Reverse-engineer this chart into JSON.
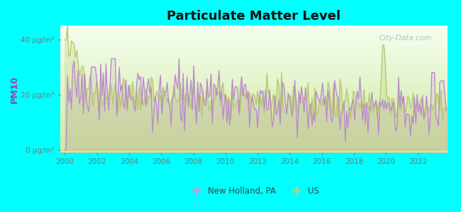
{
  "title": "Particulate Matter Level",
  "ylabel": "PM10",
  "ytick_labels": [
    "0 μg/m³",
    "20 μg/m³",
    "40 μg/m³"
  ],
  "ytick_values": [
    0,
    20,
    40
  ],
  "ylim": [
    -1,
    45
  ],
  "xlim": [
    1999.7,
    2023.8
  ],
  "xticks": [
    2000,
    2002,
    2004,
    2006,
    2008,
    2010,
    2012,
    2014,
    2016,
    2018,
    2020,
    2022
  ],
  "background_color": "#00FFFF",
  "nh_color": "#bb88cc",
  "us_color": "#b8c870",
  "legend_nh_color": "#ee88cc",
  "legend_us_color": "#c8c878",
  "watermark": "City-Data.com",
  "gradient_bottom": "#d0e8a0",
  "gradient_top": "#f8fff8"
}
